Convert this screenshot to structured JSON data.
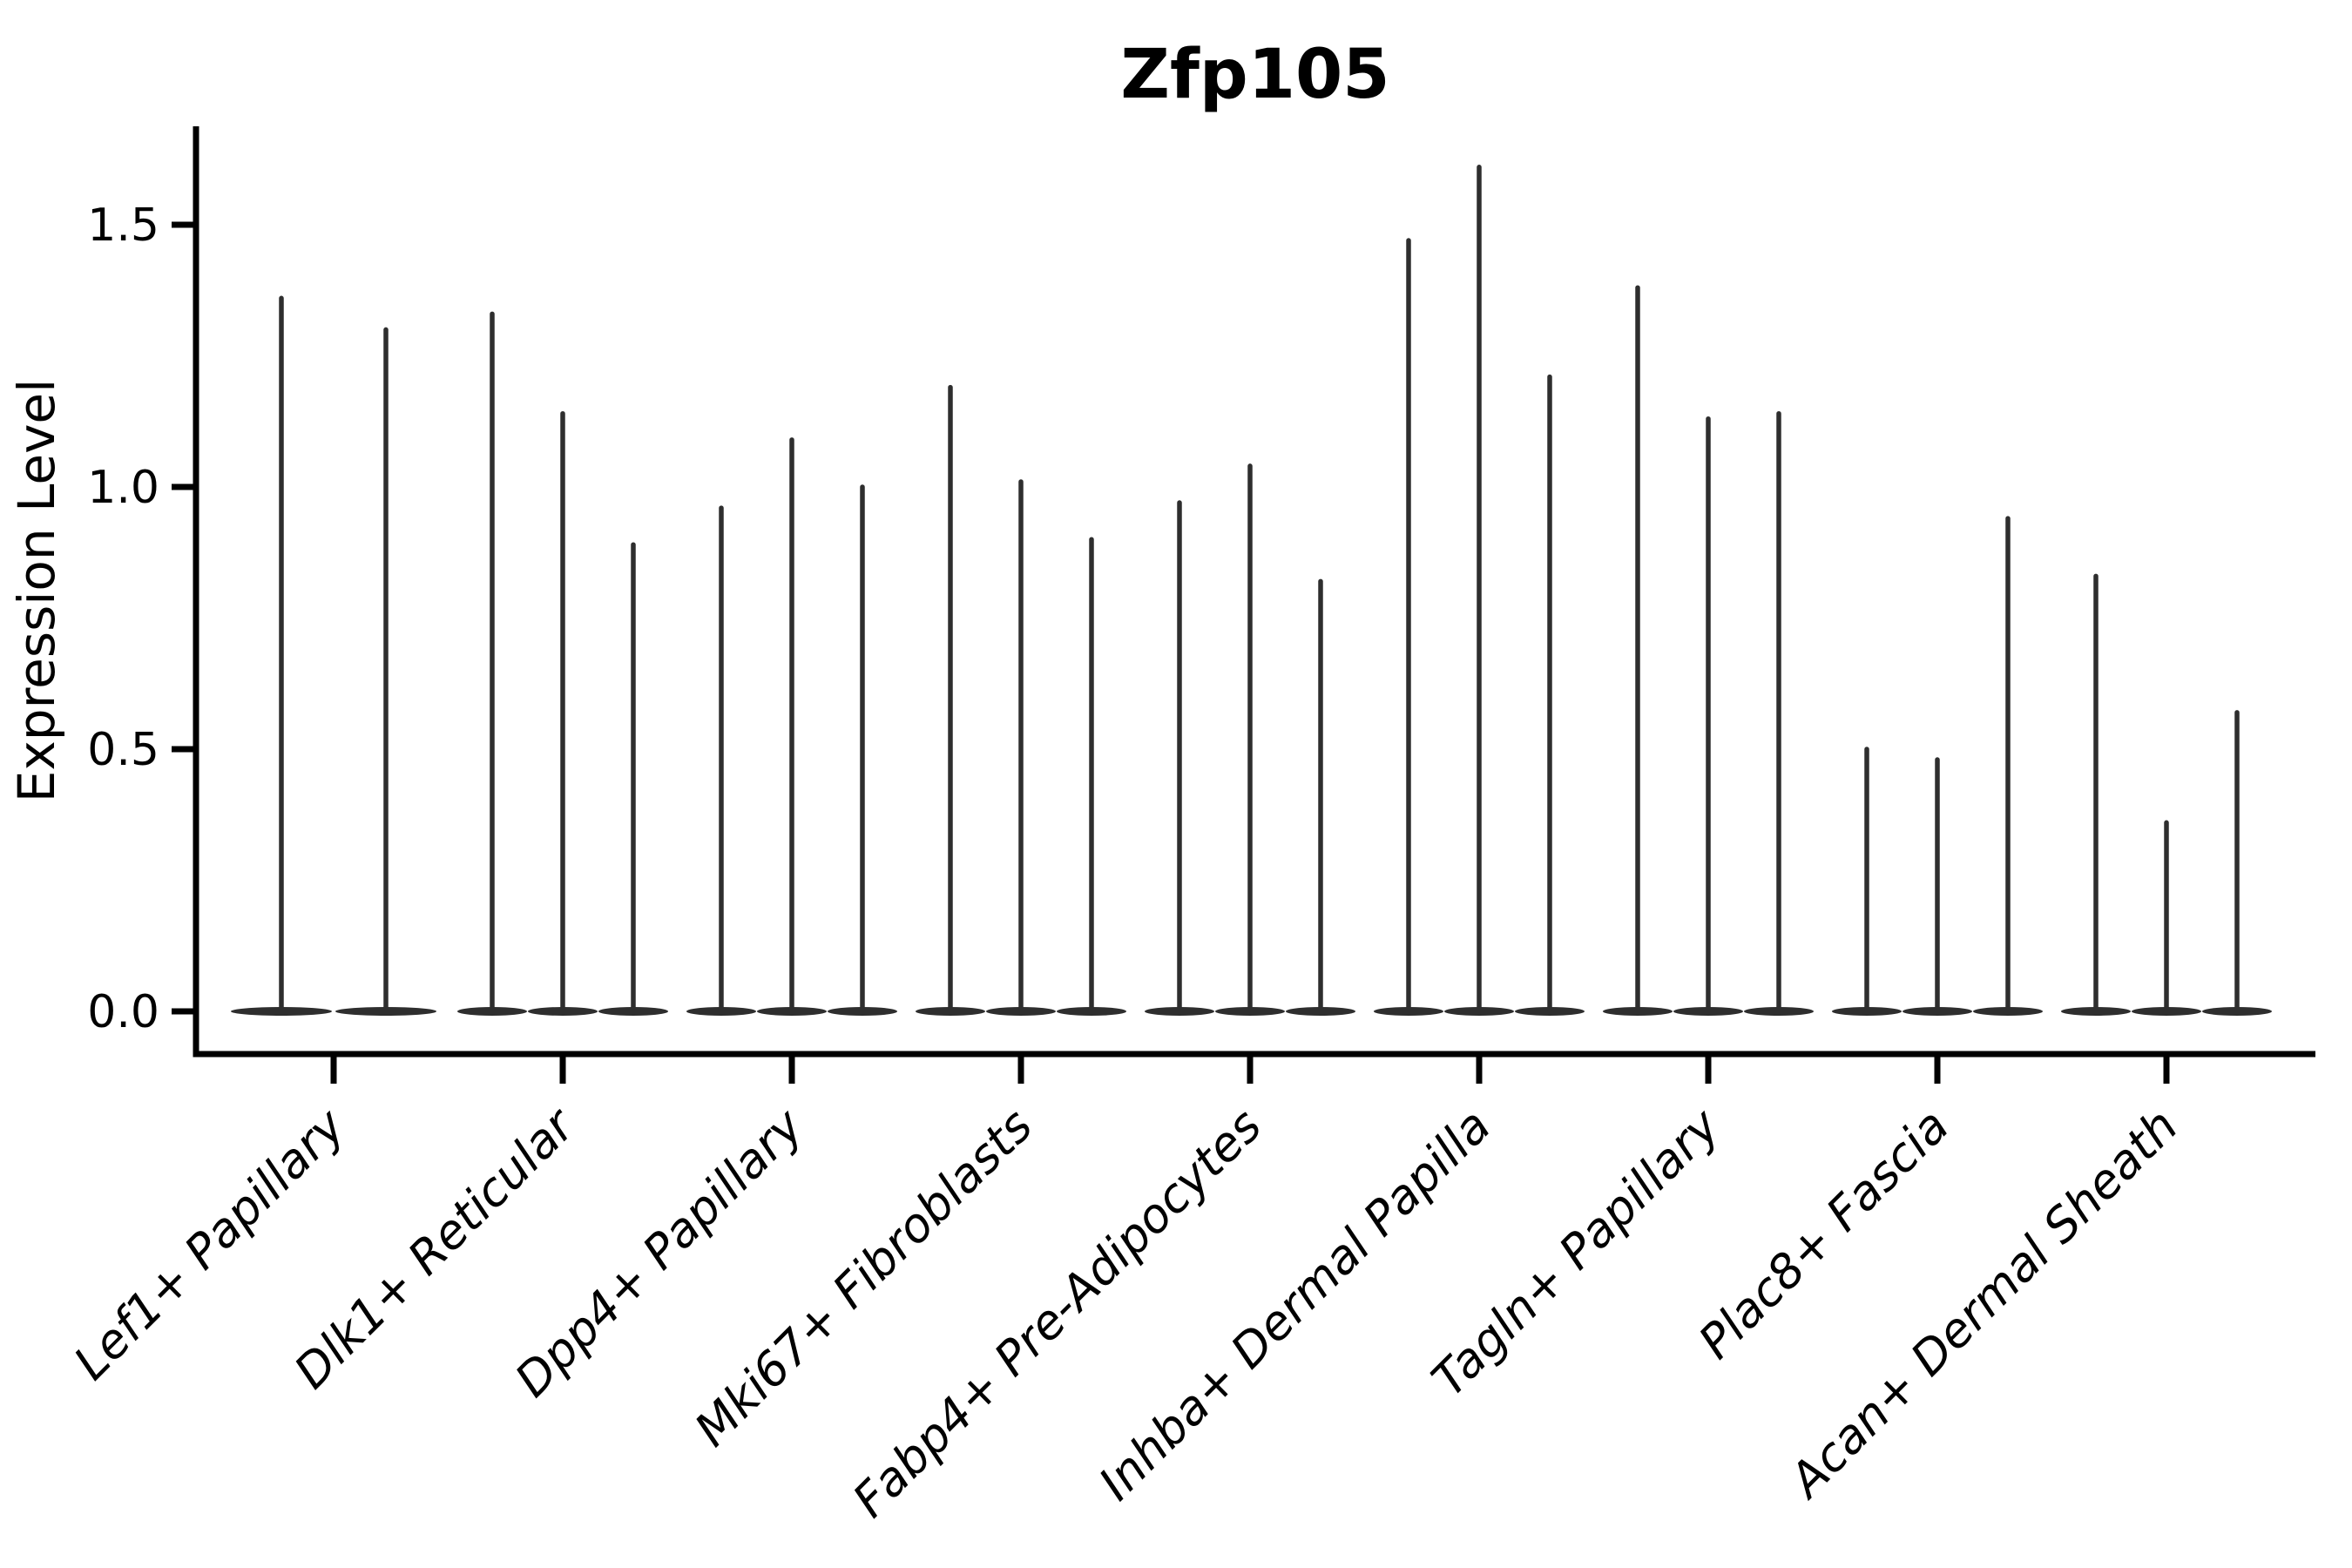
{
  "chart_data": {
    "type": "violin",
    "title": "Zfp105",
    "xlabel": "",
    "ylabel": "Expression Level",
    "yticks": [
      0.0,
      0.5,
      1.0,
      1.5
    ],
    "ylim": [
      -0.08,
      1.69
    ],
    "grid": false,
    "legend_position": "none",
    "style_note": "sparse scRNA-seq violins: wide flat density mass at 0 with a thin spike up to the max expression value",
    "categories": [
      "Lef1+ Papillary",
      "Dlk1+ Reticular",
      "Dpp4+ Papillary",
      "Mki67+ Fibroblasts",
      "Fabp4+ Pre-Adipocytes",
      "Inhba+ Dermal Papilla",
      "Tagln+ Papillary",
      "Plac8+ Fascia",
      "Acan+ Dermal Sheath"
    ],
    "series": [
      {
        "category": "Lef1+ Papillary",
        "violin_max_values": [
          1.36,
          1.3
        ]
      },
      {
        "category": "Dlk1+ Reticular",
        "violin_max_values": [
          1.33,
          1.14,
          0.89
        ]
      },
      {
        "category": "Dpp4+ Papillary",
        "violin_max_values": [
          0.96,
          1.09,
          1.0
        ]
      },
      {
        "category": "Mki67+ Fibroblasts",
        "violin_max_values": [
          1.19,
          1.01,
          0.9
        ]
      },
      {
        "category": "Fabp4+ Pre-Adipocytes",
        "violin_max_values": [
          0.97,
          1.04,
          0.82
        ]
      },
      {
        "category": "Inhba+ Dermal Papilla",
        "violin_max_values": [
          1.47,
          1.61,
          1.21
        ]
      },
      {
        "category": "Tagln+ Papillary",
        "violin_max_values": [
          1.38,
          1.13,
          1.14
        ]
      },
      {
        "category": "Plac8+ Fascia",
        "violin_max_values": [
          0.5,
          0.48,
          0.94
        ]
      },
      {
        "category": "Acan+ Dermal Sheath",
        "violin_max_values": [
          0.83,
          0.36,
          0.57
        ]
      }
    ],
    "colors": {
      "violin": "#2e2e2e",
      "axis": "#000000",
      "text": "#000000",
      "background": "#ffffff"
    }
  }
}
